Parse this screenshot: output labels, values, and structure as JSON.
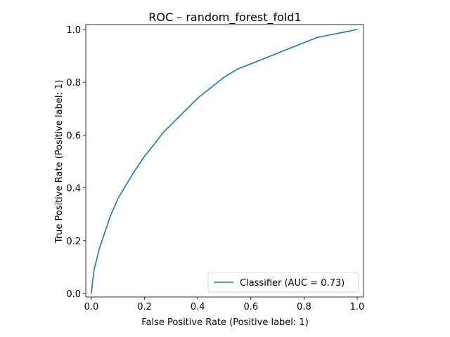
{
  "chart_data": {
    "type": "line",
    "title": "ROC – random_forest_fold1",
    "xlabel": "False Positive Rate (Positive label: 1)",
    "ylabel": "True Positive Rate (Positive label: 1)",
    "xlim": [
      0.0,
      1.0
    ],
    "ylim": [
      0.0,
      1.0
    ],
    "xticks": [
      "0.0",
      "0.2",
      "0.4",
      "0.6",
      "0.8",
      "1.0"
    ],
    "yticks": [
      "0.0",
      "0.2",
      "0.4",
      "0.6",
      "0.8",
      "1.0"
    ],
    "grid": false,
    "legend_position": "lower-right",
    "series": [
      {
        "name": "Classifier (AUC = 0.73)",
        "color": "#1f77b4",
        "x": [
          0.0,
          0.005,
          0.01,
          0.02,
          0.03,
          0.05,
          0.07,
          0.1,
          0.13,
          0.16,
          0.2,
          0.24,
          0.27,
          0.3,
          0.35,
          0.4,
          0.45,
          0.5,
          0.55,
          0.6,
          0.65,
          0.7,
          0.75,
          0.8,
          0.85,
          0.9,
          0.95,
          1.0
        ],
        "y": [
          0.0,
          0.05,
          0.09,
          0.13,
          0.17,
          0.23,
          0.29,
          0.36,
          0.41,
          0.46,
          0.52,
          0.57,
          0.61,
          0.64,
          0.69,
          0.74,
          0.78,
          0.82,
          0.85,
          0.87,
          0.89,
          0.91,
          0.93,
          0.95,
          0.97,
          0.98,
          0.99,
          1.0
        ]
      }
    ]
  }
}
